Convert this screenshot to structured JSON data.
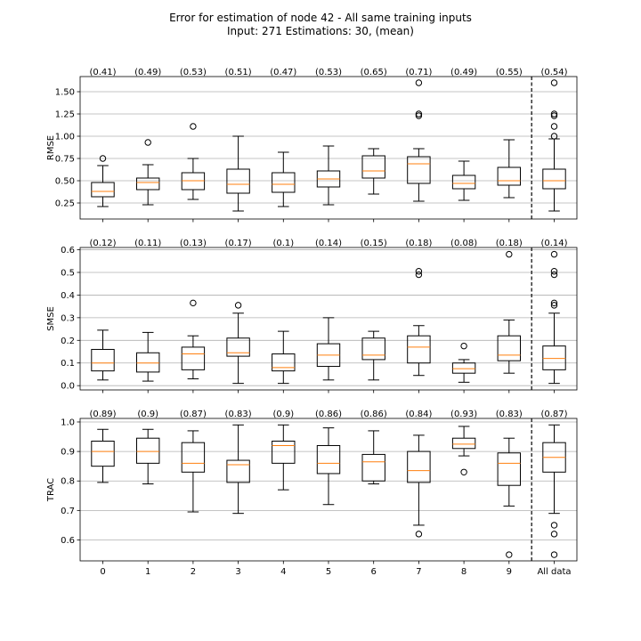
{
  "figure": {
    "title_line1": "Error for estimation of node 42 - All same training inputs",
    "title_line2": "Input: 271   Estimations: 30,  (mean)"
  },
  "colors": {
    "median": "#ff7f0e",
    "box": "#000000",
    "grid": "#b0b0b0"
  },
  "chart_data": [
    {
      "type": "box",
      "ylabel": "RMSE",
      "yticks": [
        0.25,
        0.5,
        0.75,
        1.0,
        1.25,
        1.5
      ],
      "ytick_labels": [
        "0.25",
        "0.50",
        "0.75",
        "1.00",
        "1.25",
        "1.50"
      ],
      "ylim": [
        0.07,
        1.67
      ],
      "categories": [
        "0",
        "1",
        "2",
        "3",
        "4",
        "5",
        "6",
        "7",
        "8",
        "9",
        "All data"
      ],
      "means": [
        "(0.41)",
        "(0.49)",
        "(0.53)",
        "(0.51)",
        "(0.47)",
        "(0.53)",
        "(0.65)",
        "(0.71)",
        "(0.49)",
        "(0.55)",
        "(0.54)"
      ],
      "boxes": [
        {
          "whislo": 0.21,
          "q1": 0.32,
          "med": 0.38,
          "q3": 0.48,
          "whishi": 0.67,
          "fliers": [
            0.75
          ]
        },
        {
          "whislo": 0.23,
          "q1": 0.4,
          "med": 0.48,
          "q3": 0.53,
          "whishi": 0.68,
          "fliers": [
            0.93
          ]
        },
        {
          "whislo": 0.29,
          "q1": 0.4,
          "med": 0.5,
          "q3": 0.59,
          "whishi": 0.75,
          "fliers": [
            1.11
          ]
        },
        {
          "whislo": 0.16,
          "q1": 0.36,
          "med": 0.46,
          "q3": 0.63,
          "whishi": 1.0,
          "fliers": []
        },
        {
          "whislo": 0.21,
          "q1": 0.37,
          "med": 0.46,
          "q3": 0.59,
          "whishi": 0.82,
          "fliers": []
        },
        {
          "whislo": 0.23,
          "q1": 0.43,
          "med": 0.52,
          "q3": 0.61,
          "whishi": 0.89,
          "fliers": []
        },
        {
          "whislo": 0.35,
          "q1": 0.53,
          "med": 0.61,
          "q3": 0.78,
          "whishi": 0.86,
          "fliers": []
        },
        {
          "whislo": 0.27,
          "q1": 0.47,
          "med": 0.69,
          "q3": 0.77,
          "whishi": 0.86,
          "fliers": [
            1.6,
            1.25,
            1.23
          ]
        },
        {
          "whislo": 0.28,
          "q1": 0.41,
          "med": 0.47,
          "q3": 0.56,
          "whishi": 0.72,
          "fliers": []
        },
        {
          "whislo": 0.31,
          "q1": 0.45,
          "med": 0.5,
          "q3": 0.65,
          "whishi": 0.96,
          "fliers": []
        },
        {
          "whislo": 0.16,
          "q1": 0.41,
          "med": 0.5,
          "q3": 0.63,
          "whishi": 0.97,
          "fliers": [
            1.6,
            1.25,
            1.23,
            1.11,
            1.0
          ]
        }
      ]
    },
    {
      "type": "box",
      "ylabel": "SMSE",
      "yticks": [
        0.0,
        0.1,
        0.2,
        0.3,
        0.4,
        0.5,
        0.6
      ],
      "ytick_labels": [
        "0.0",
        "0.1",
        "0.2",
        "0.3",
        "0.4",
        "0.5",
        "0.6"
      ],
      "ylim": [
        -0.019,
        0.61
      ],
      "categories": [
        "0",
        "1",
        "2",
        "3",
        "4",
        "5",
        "6",
        "7",
        "8",
        "9",
        "All data"
      ],
      "means": [
        "(0.12)",
        "(0.11)",
        "(0.13)",
        "(0.17)",
        "(0.1)",
        "(0.14)",
        "(0.15)",
        "(0.18)",
        "(0.08)",
        "(0.18)",
        "(0.14)"
      ],
      "boxes": [
        {
          "whislo": 0.025,
          "q1": 0.065,
          "med": 0.1,
          "q3": 0.16,
          "whishi": 0.245,
          "fliers": []
        },
        {
          "whislo": 0.02,
          "q1": 0.06,
          "med": 0.1,
          "q3": 0.145,
          "whishi": 0.235,
          "fliers": []
        },
        {
          "whislo": 0.03,
          "q1": 0.07,
          "med": 0.14,
          "q3": 0.17,
          "whishi": 0.22,
          "fliers": [
            0.365
          ]
        },
        {
          "whislo": 0.01,
          "q1": 0.13,
          "med": 0.145,
          "q3": 0.21,
          "whishi": 0.32,
          "fliers": [
            0.355
          ]
        },
        {
          "whislo": 0.01,
          "q1": 0.065,
          "med": 0.08,
          "q3": 0.14,
          "whishi": 0.24,
          "fliers": []
        },
        {
          "whislo": 0.025,
          "q1": 0.085,
          "med": 0.135,
          "q3": 0.185,
          "whishi": 0.3,
          "fliers": []
        },
        {
          "whislo": 0.025,
          "q1": 0.115,
          "med": 0.135,
          "q3": 0.21,
          "whishi": 0.24,
          "fliers": []
        },
        {
          "whislo": 0.045,
          "q1": 0.1,
          "med": 0.17,
          "q3": 0.22,
          "whishi": 0.265,
          "fliers": [
            0.505,
            0.49
          ]
        },
        {
          "whislo": 0.015,
          "q1": 0.055,
          "med": 0.075,
          "q3": 0.1,
          "whishi": 0.115,
          "fliers": [
            0.175
          ]
        },
        {
          "whislo": 0.055,
          "q1": 0.11,
          "med": 0.135,
          "q3": 0.22,
          "whishi": 0.29,
          "fliers": [
            0.58
          ]
        },
        {
          "whislo": 0.01,
          "q1": 0.07,
          "med": 0.12,
          "q3": 0.175,
          "whishi": 0.32,
          "fliers": [
            0.58,
            0.505,
            0.49,
            0.365,
            0.355
          ]
        }
      ]
    },
    {
      "type": "box",
      "ylabel": "TRAC",
      "yticks": [
        0.6,
        0.7,
        0.8,
        0.9,
        1.0
      ],
      "ytick_labels": [
        "0.6",
        "0.7",
        "0.8",
        "0.9",
        "1.0"
      ],
      "ylim": [
        0.529,
        1.012
      ],
      "categories": [
        "0",
        "1",
        "2",
        "3",
        "4",
        "5",
        "6",
        "7",
        "8",
        "9",
        "All data"
      ],
      "means": [
        "(0.89)",
        "(0.9)",
        "(0.87)",
        "(0.83)",
        "(0.9)",
        "(0.86)",
        "(0.86)",
        "(0.84)",
        "(0.93)",
        "(0.83)",
        "(0.87)"
      ],
      "boxes": [
        {
          "whislo": 0.795,
          "q1": 0.85,
          "med": 0.9,
          "q3": 0.935,
          "whishi": 0.975,
          "fliers": []
        },
        {
          "whislo": 0.79,
          "q1": 0.86,
          "med": 0.9,
          "q3": 0.945,
          "whishi": 0.975,
          "fliers": []
        },
        {
          "whislo": 0.695,
          "q1": 0.83,
          "med": 0.86,
          "q3": 0.93,
          "whishi": 0.97,
          "fliers": []
        },
        {
          "whislo": 0.69,
          "q1": 0.795,
          "med": 0.855,
          "q3": 0.87,
          "whishi": 0.99,
          "fliers": []
        },
        {
          "whislo": 0.77,
          "q1": 0.86,
          "med": 0.92,
          "q3": 0.935,
          "whishi": 0.99,
          "fliers": []
        },
        {
          "whislo": 0.72,
          "q1": 0.825,
          "med": 0.86,
          "q3": 0.92,
          "whishi": 0.98,
          "fliers": []
        },
        {
          "whislo": 0.79,
          "q1": 0.8,
          "med": 0.865,
          "q3": 0.89,
          "whishi": 0.97,
          "fliers": []
        },
        {
          "whislo": 0.65,
          "q1": 0.795,
          "med": 0.835,
          "q3": 0.9,
          "whishi": 0.955,
          "fliers": [
            0.62
          ]
        },
        {
          "whislo": 0.885,
          "q1": 0.91,
          "med": 0.925,
          "q3": 0.945,
          "whishi": 0.985,
          "fliers": [
            0.83
          ]
        },
        {
          "whislo": 0.715,
          "q1": 0.785,
          "med": 0.86,
          "q3": 0.895,
          "whishi": 0.945,
          "fliers": [
            0.55
          ]
        },
        {
          "whislo": 0.69,
          "q1": 0.83,
          "med": 0.88,
          "q3": 0.93,
          "whishi": 0.99,
          "fliers": [
            0.65,
            0.62,
            0.55
          ]
        }
      ]
    }
  ]
}
